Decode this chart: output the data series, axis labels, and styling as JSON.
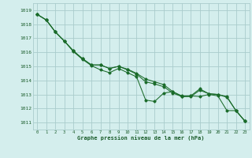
{
  "title": "Graphe pression niveau de la mer (hPa)",
  "bg": "#d4eeed",
  "grid_color": "#aacccc",
  "line_color": "#1a6b2a",
  "text_color": "#1a5c2a",
  "xlim": [
    -0.5,
    23.5
  ],
  "ylim": [
    1010.5,
    1019.5
  ],
  "yticks": [
    1011,
    1012,
    1013,
    1014,
    1015,
    1016,
    1017,
    1018,
    1019
  ],
  "xticks": [
    0,
    1,
    2,
    3,
    4,
    5,
    6,
    7,
    8,
    9,
    10,
    11,
    12,
    13,
    14,
    15,
    16,
    17,
    18,
    19,
    20,
    21,
    22,
    23
  ],
  "line_A": [
    1018.7,
    1018.3,
    1017.45,
    1016.8,
    1016.1,
    1015.55,
    1015.1,
    1015.1,
    1014.85,
    1015.0,
    1014.8,
    1014.5,
    1014.1,
    1013.9,
    1013.7,
    1013.2,
    1012.9,
    1012.9,
    1013.4,
    1013.05,
    1013.0,
    1012.85,
    1011.85,
    1011.1
  ],
  "line_B": [
    1018.7,
    1018.3,
    1017.45,
    1016.8,
    1016.1,
    1015.55,
    1015.1,
    1015.1,
    1014.85,
    1015.0,
    1014.75,
    1014.45,
    1013.9,
    1013.75,
    1013.55,
    1013.1,
    1012.85,
    1012.85,
    1013.3,
    1013.05,
    1013.0,
    1012.8,
    1011.85,
    1011.1
  ],
  "line_C": [
    1018.7,
    1018.3,
    1017.45,
    1016.8,
    1016.05,
    1015.5,
    1015.05,
    1014.75,
    1014.55,
    1014.85,
    1014.55,
    1014.25,
    1012.6,
    1012.5,
    1013.1,
    1013.2,
    1012.85,
    1012.9,
    1012.85,
    1013.0,
    1012.9,
    1011.85,
    1011.85,
    1011.1
  ]
}
